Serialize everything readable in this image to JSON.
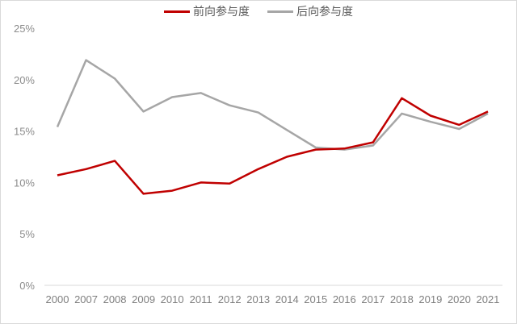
{
  "chart_data": {
    "type": "line",
    "title": "",
    "xlabel": "",
    "ylabel": "",
    "ylim": [
      0,
      25
    ],
    "y_ticks": [
      "0%",
      "5%",
      "10%",
      "15%",
      "20%",
      "25%"
    ],
    "y_tick_values": [
      0,
      5,
      10,
      15,
      20,
      25
    ],
    "grid": false,
    "legend_position": "top",
    "categories": [
      "2000",
      "2007",
      "2008",
      "2009",
      "2010",
      "2011",
      "2012",
      "2013",
      "2014",
      "2015",
      "2016",
      "2017",
      "2018",
      "2019",
      "2020",
      "2021"
    ],
    "series": [
      {
        "name": "前向参与度",
        "color": "#c00000",
        "values": [
          10.7,
          11.3,
          12.1,
          8.9,
          9.2,
          10.0,
          9.9,
          11.3,
          12.5,
          13.2,
          13.3,
          13.9,
          18.2,
          16.5,
          15.6,
          16.9
        ]
      },
      {
        "name": "后向参与度",
        "color": "#a6a6a6",
        "values": [
          15.4,
          21.9,
          20.1,
          16.9,
          18.3,
          18.7,
          17.5,
          16.8,
          15.1,
          13.4,
          13.2,
          13.6,
          16.7,
          15.9,
          15.2,
          16.7
        ]
      }
    ]
  },
  "legend": {
    "items": [
      {
        "label": "前向参与度",
        "color": "#c00000"
      },
      {
        "label": "后向参与度",
        "color": "#a6a6a6"
      }
    ]
  }
}
